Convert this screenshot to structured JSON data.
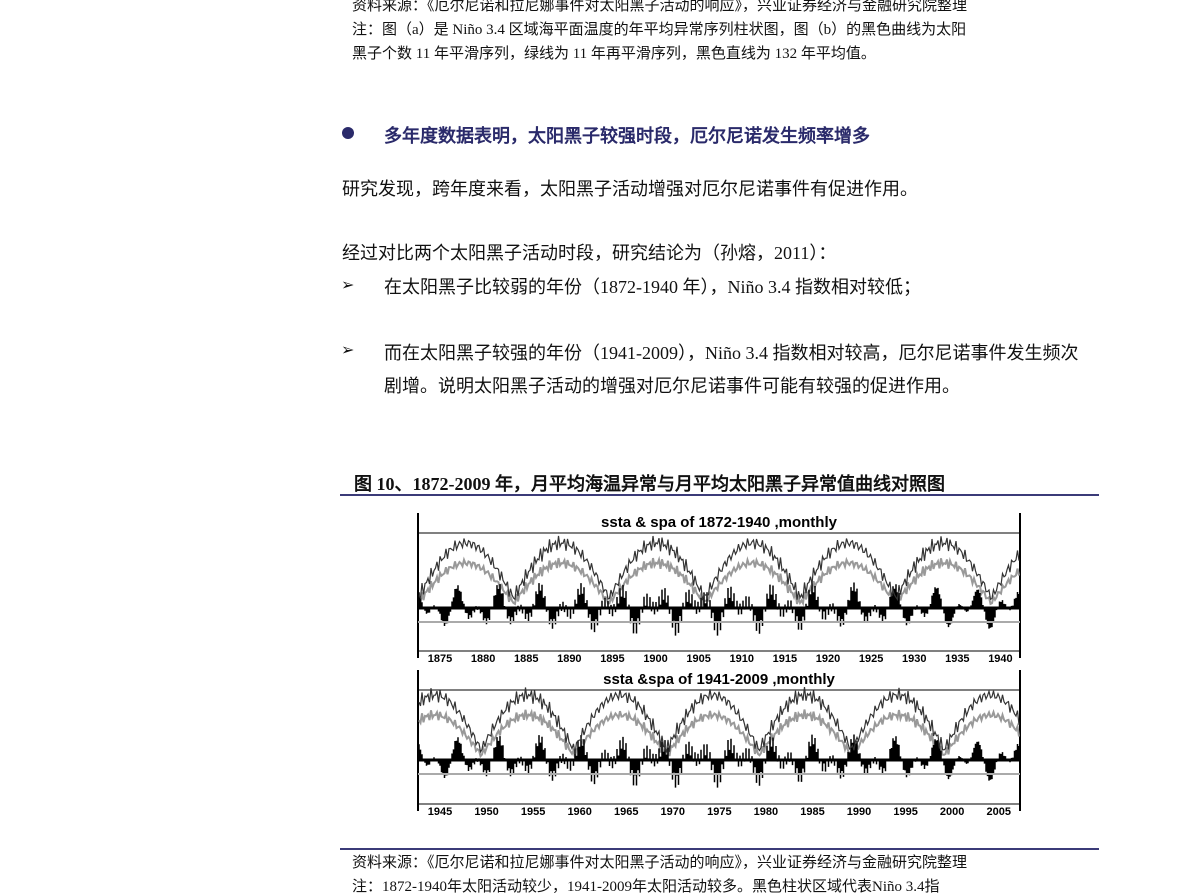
{
  "source_top": "资料来源：《厄尔尼诺和拉尼娜事件对太阳黑子活动的响应》，兴业证券经济与金融研究院整理",
  "note_top": [
    "注：图（a）是 Niño 3.4 区域海平面温度的年平均异常序列柱状图，图（b）的黑色曲线为太阳",
    "黑子个数 11 年平滑序列，绿线为 11 年再平滑序列，黑色直线为 132 年平均值。"
  ],
  "heading": "多年度数据表明，太阳黑子较强时段，厄尔尼诺发生频率增多",
  "paragraphs": [
    "研究发现，跨年度来看，太阳黑子活动增强对厄尔尼诺事件有促进作用。",
    "经过对比两个太阳黑子活动时段，研究结论为（孙熔，2011）："
  ],
  "list": [
    "在太阳黑子比较弱的年份（1872-1940 年），Niño 3.4 指数相对较低；",
    "而在太阳黑子较强的年份（1941-2009），Niño 3.4 指数相对较高，厄尔尼诺事件发生频次剧增。说明太阳黑子活动的增强对厄尔尼诺事件可能有较强的促进作用。"
  ],
  "figure": {
    "title": "图 10、1872-2009 年，月平均海温异常与月平均太阳黑子异常值曲线对照图",
    "panels": [
      {
        "title": "ssta & spa of 1872-1940 ,monthly",
        "xticks": [
          "1875",
          "1880",
          "1885",
          "1890",
          "1895",
          "1900",
          "1905",
          "1910",
          "1915",
          "1920",
          "1925",
          "1930",
          "1935",
          "1940"
        ]
      },
      {
        "title": "ssta &spa of 1941-2009 ,monthly",
        "xticks": [
          "1945",
          "1950",
          "1955",
          "1960",
          "1965",
          "1970",
          "1975",
          "1980",
          "1985",
          "1990",
          "1995",
          "2000",
          "2005"
        ]
      }
    ],
    "source": "资料来源：《厄尔尼诺和拉尼娜事件对太阳黑子活动的响应》，兴业证券经济与金融研究院整理",
    "note": "注：1872-1940年太阳活动较少，1941-2009年太阳活动较多。黑色柱状区域代表Niño 3.4指"
  }
}
